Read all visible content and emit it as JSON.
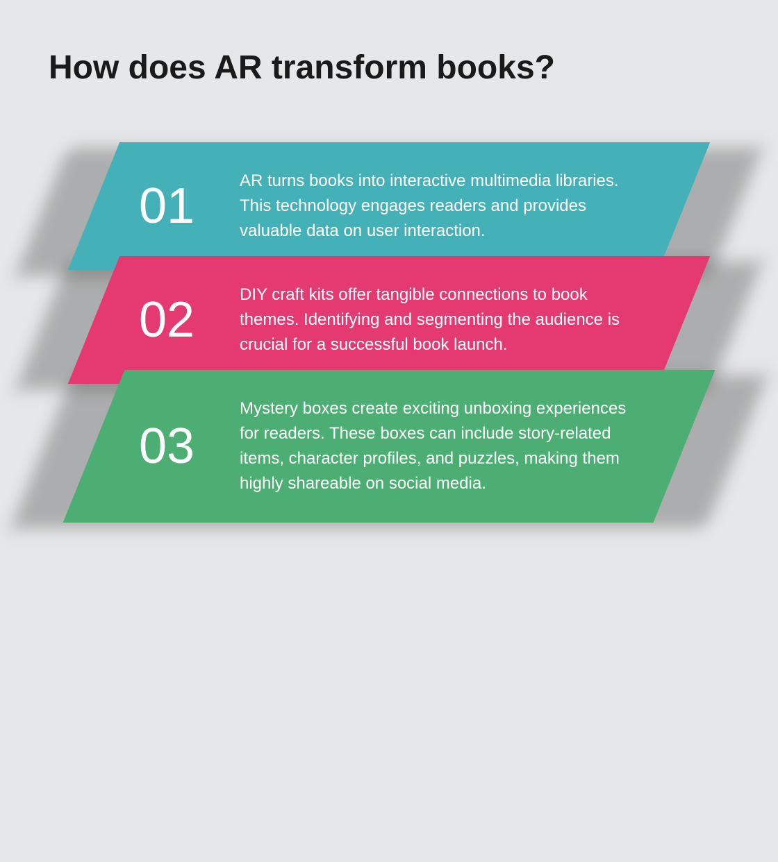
{
  "title": "How does AR transform books?",
  "background_color": "#e6e7e8",
  "title_color": "#1a1a1a",
  "title_fontsize": 48,
  "number_fontsize": 72,
  "text_fontsize": 24,
  "text_color": "#ffffff",
  "skew_angle": -22,
  "panels": [
    {
      "number": "01",
      "text": "AR turns books into interactive multimedia libraries. This technology engages readers and provides valuable data on user interaction.",
      "color": "#44b1b8"
    },
    {
      "number": "02",
      "text": "DIY craft kits offer tangible connections to book themes. Identifying and segmenting the audience is crucial for a successful book launch.",
      "color": "#e43a71"
    },
    {
      "number": "03",
      "text": "Mystery boxes create exciting unboxing experiences for readers. These boxes can include story-related items, character profiles, and puzzles, making them highly shareable on social media.",
      "color": "#4cae72"
    }
  ]
}
